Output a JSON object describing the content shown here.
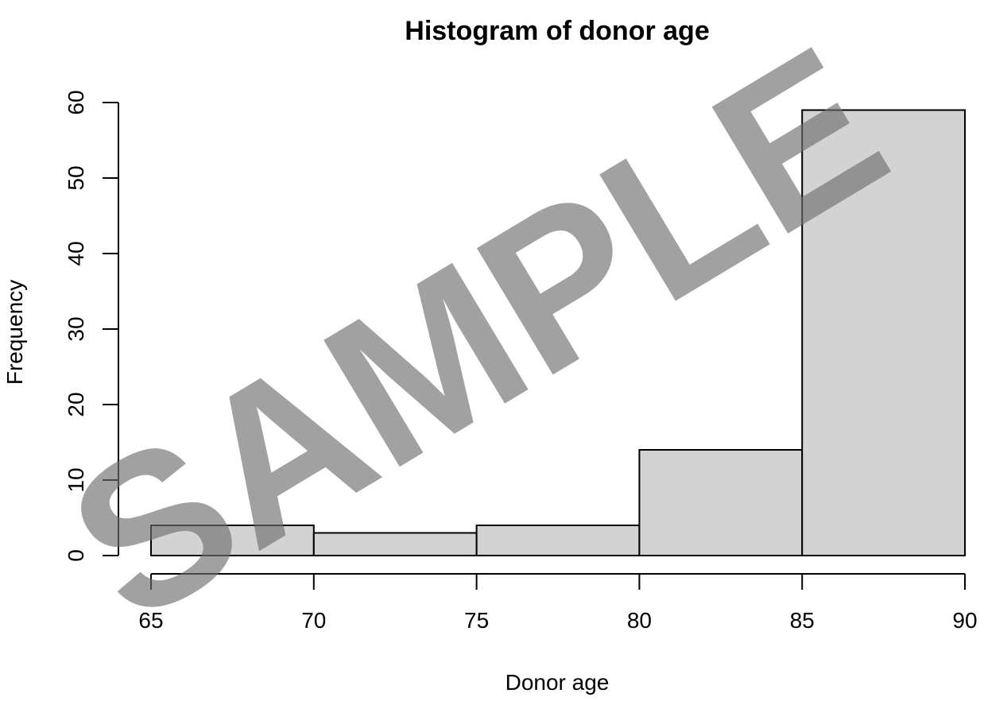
{
  "chart_data": {
    "type": "bar",
    "title": "Histogram of donor age",
    "xlabel": "Donor age",
    "ylabel": "Frequency",
    "bins": [
      {
        "from": 65,
        "to": 70,
        "count": 4
      },
      {
        "from": 70,
        "to": 75,
        "count": 3
      },
      {
        "from": 75,
        "to": 80,
        "count": 4
      },
      {
        "from": 80,
        "to": 85,
        "count": 14
      },
      {
        "from": 85,
        "to": 90,
        "count": 59
      }
    ],
    "xlim": [
      65,
      90
    ],
    "ylim": [
      0,
      60
    ],
    "x_ticks": [
      "65",
      "70",
      "75",
      "80",
      "85",
      "90"
    ],
    "y_ticks": [
      "0",
      "10",
      "20",
      "30",
      "40",
      "50",
      "60"
    ],
    "bar_color": "#d3d3d3",
    "grid": false,
    "legend": "none"
  },
  "watermark": {
    "text": "SAMPLE",
    "color": "#6e6e6e"
  }
}
